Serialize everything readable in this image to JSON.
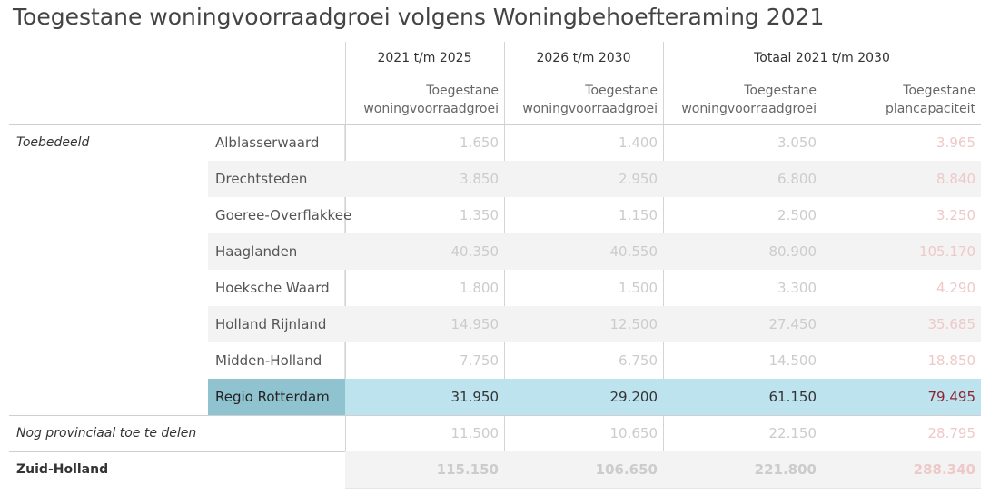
{
  "title": "Toegestane woningvoorraadgroei volgens Woningbehoefteraming 2021",
  "chart_data": {
    "type": "table",
    "column_groups": [
      "2021 t/m 2025",
      "2026 t/m 2030",
      "Totaal 2021 t/m 2030"
    ],
    "columns": [
      "Toegestane woningvoorraadgroei",
      "Toegestane woningvoorraadgroei",
      "Toegestane woningvoorraadgroei",
      "Toegestane plancapaciteit"
    ],
    "group_label": "Toebedeeld",
    "rows": [
      {
        "name": "Alblasserwaard",
        "values": [
          "1.650",
          "1.400",
          "3.050",
          "3.965"
        ]
      },
      {
        "name": "Drechtsteden",
        "values": [
          "3.850",
          "2.950",
          "6.800",
          "8.840"
        ]
      },
      {
        "name": "Goeree-Overflakkee",
        "values": [
          "1.350",
          "1.150",
          "2.500",
          "3.250"
        ]
      },
      {
        "name": "Haaglanden",
        "values": [
          "40.350",
          "40.550",
          "80.900",
          "105.170"
        ]
      },
      {
        "name": "Hoeksche Waard",
        "values": [
          "1.800",
          "1.500",
          "3.300",
          "4.290"
        ]
      },
      {
        "name": "Holland Rijnland",
        "values": [
          "14.950",
          "12.500",
          "27.450",
          "35.685"
        ]
      },
      {
        "name": "Midden-Holland",
        "values": [
          "7.750",
          "6.750",
          "14.500",
          "18.850"
        ]
      },
      {
        "name": "Regio Rotterdam",
        "values": [
          "31.950",
          "29.200",
          "61.150",
          "79.495"
        ],
        "selected": true
      }
    ],
    "extra_rows": [
      {
        "name": "Nog provinciaal toe te delen",
        "values": [
          "11.500",
          "10.650",
          "22.150",
          "28.795"
        ]
      },
      {
        "name": "Zuid-Holland",
        "values": [
          "115.150",
          "106.650",
          "221.800",
          "288.340"
        ],
        "total": true
      }
    ]
  },
  "colors": {
    "selected_row": "#bde3ef",
    "selected_name": "#8fc3cf",
    "faded_value": "#cccccc",
    "faded_plan": "#eec9c9",
    "selected_plan": "#8f2330"
  }
}
